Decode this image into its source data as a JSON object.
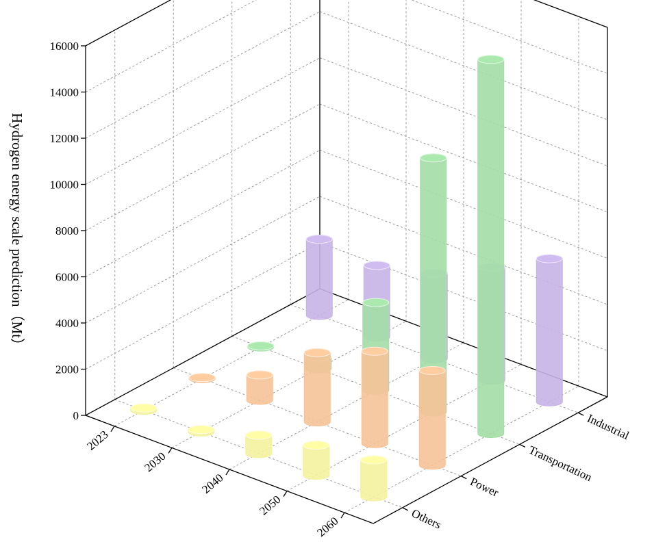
{
  "chart_data": {
    "type": "bar3d",
    "y_label": "Hydrogen energy scale prediction（Mt）",
    "categories": [
      "2023",
      "2030",
      "2040",
      "2050",
      "2060"
    ],
    "series": [
      {
        "name": "Industrial",
        "color": "#c7b3e6",
        "values": [
          3300,
          3100,
          3700,
          4900,
          6200
        ]
      },
      {
        "name": "Transportation",
        "color": "#a3dea6",
        "values": [
          50,
          500,
          3800,
          11000,
          16200
        ]
      },
      {
        "name": "Power",
        "color": "#f6c398",
        "values": [
          50,
          1100,
          3000,
          4000,
          4100
        ]
      },
      {
        "name": "Others",
        "color": "#f4f29e",
        "values": [
          100,
          100,
          800,
          1300,
          1600
        ]
      }
    ],
    "ylim": [
      0,
      16000
    ],
    "yticks": [
      0,
      2000,
      4000,
      6000,
      8000,
      10000,
      12000,
      14000,
      16000
    ],
    "grid": true
  }
}
